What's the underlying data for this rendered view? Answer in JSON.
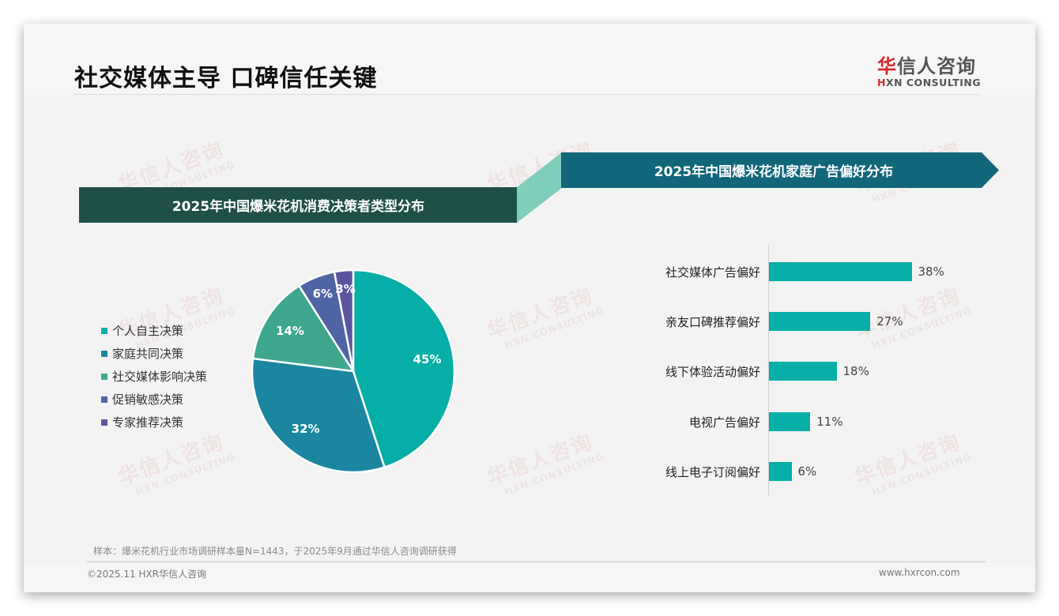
{
  "header": {
    "title": "社交媒体主导 口碑信任关键",
    "logo_cn_red": "华",
    "logo_cn_rest": "信人咨询",
    "logo_en_red": "H",
    "logo_en_rest": "XN CONSULTING"
  },
  "watermark": {
    "cn": "华信人咨询",
    "en": "HXN CONSULTING"
  },
  "left_panel": {
    "banner_title": "2025年中国爆米花机消费决策者类型分布"
  },
  "right_panel": {
    "banner_title": "2025年中国爆米花机家庭广告偏好分布"
  },
  "colors": {
    "banner_left": "#1f5048",
    "banner_right": "#12667a",
    "connector": "#7fcdbb",
    "bar": "#05aea6",
    "pie": [
      "#05aea6",
      "#1a86a0",
      "#3fa690",
      "#4e64a3",
      "#5b55a0"
    ]
  },
  "chart_data": [
    {
      "type": "pie",
      "title": "2025年中国爆米花机消费决策者类型分布",
      "categories": [
        "个人自主决策",
        "家庭共同决策",
        "社交媒体影响决策",
        "促销敏感决策",
        "专家推荐决策"
      ],
      "values": [
        45,
        32,
        14,
        6,
        3
      ],
      "labels": [
        "45%",
        "32%",
        "14%",
        "6%",
        "3%"
      ],
      "unit": "%",
      "legend_position": "left"
    },
    {
      "type": "bar",
      "orientation": "horizontal",
      "title": "2025年中国爆米花机家庭广告偏好分布",
      "categories": [
        "社交媒体广告偏好",
        "亲友口碑推荐偏好",
        "线下体验活动偏好",
        "电视广告偏好",
        "线上电子订阅偏好"
      ],
      "values": [
        38,
        27,
        18,
        11,
        6
      ],
      "labels": [
        "38%",
        "27%",
        "18%",
        "11%",
        "6%"
      ],
      "unit": "%",
      "xlabel": "",
      "ylabel": "",
      "grid": false
    }
  ],
  "footer": {
    "sample_note": "样本：爆米花机行业市场调研样本量N=1443，于2025年9月通过华信人咨询调研获得",
    "copyright": "©2025.11 HXR华信人咨询",
    "website": "www.hxrcon.com"
  }
}
